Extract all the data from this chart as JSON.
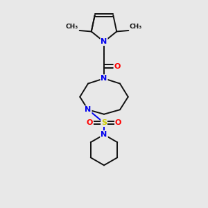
{
  "bg_color": "#e8e8e8",
  "atom_colors": {
    "N": "#0000ee",
    "O": "#ff0000",
    "S": "#cccc00",
    "C": "#111111"
  },
  "bond_color": "#111111",
  "line_width": 1.4,
  "font_size": 8
}
